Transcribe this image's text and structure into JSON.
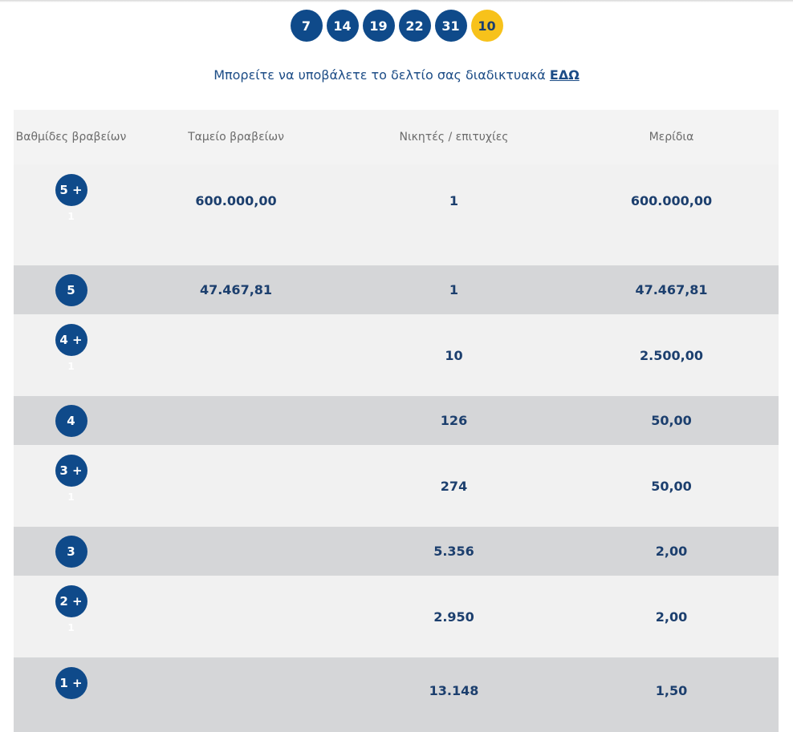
{
  "draw": {
    "numbers": [
      "7",
      "14",
      "19",
      "22",
      "31"
    ],
    "joker": "10"
  },
  "submit": {
    "text": "Μπορείτε να υποβάλετε το δελτίο σας διαδικτυακά",
    "link_label": "ΕΔΩ"
  },
  "table": {
    "headers": {
      "grades": "Βαθμίδες βραβείων",
      "fund": "Ταμείο βραβείων",
      "winners": "Νικητές / επιτυχίες",
      "share": "Μερίδια"
    },
    "rows": [
      {
        "grade": "5 +",
        "sub": "1",
        "fund": "600.000,00",
        "winners": "1",
        "share": "600.000,00"
      },
      {
        "grade": "5",
        "sub": "",
        "fund": "47.467,81",
        "winners": "1",
        "share": "47.467,81"
      },
      {
        "grade": "4 +",
        "sub": "1",
        "fund": "",
        "winners": "10",
        "share": "2.500,00"
      },
      {
        "grade": "4",
        "sub": "",
        "fund": "",
        "winners": "126",
        "share": "50,00"
      },
      {
        "grade": "3 +",
        "sub": "1",
        "fund": "",
        "winners": "274",
        "share": "50,00"
      },
      {
        "grade": "3",
        "sub": "",
        "fund": "",
        "winners": "5.356",
        "share": "2,00"
      },
      {
        "grade": "2 +",
        "sub": "1",
        "fund": "",
        "winners": "2.950",
        "share": "2,00"
      },
      {
        "grade": "1 +",
        "sub": "",
        "fund": "",
        "winners": "13.148",
        "share": "1,50"
      }
    ]
  }
}
